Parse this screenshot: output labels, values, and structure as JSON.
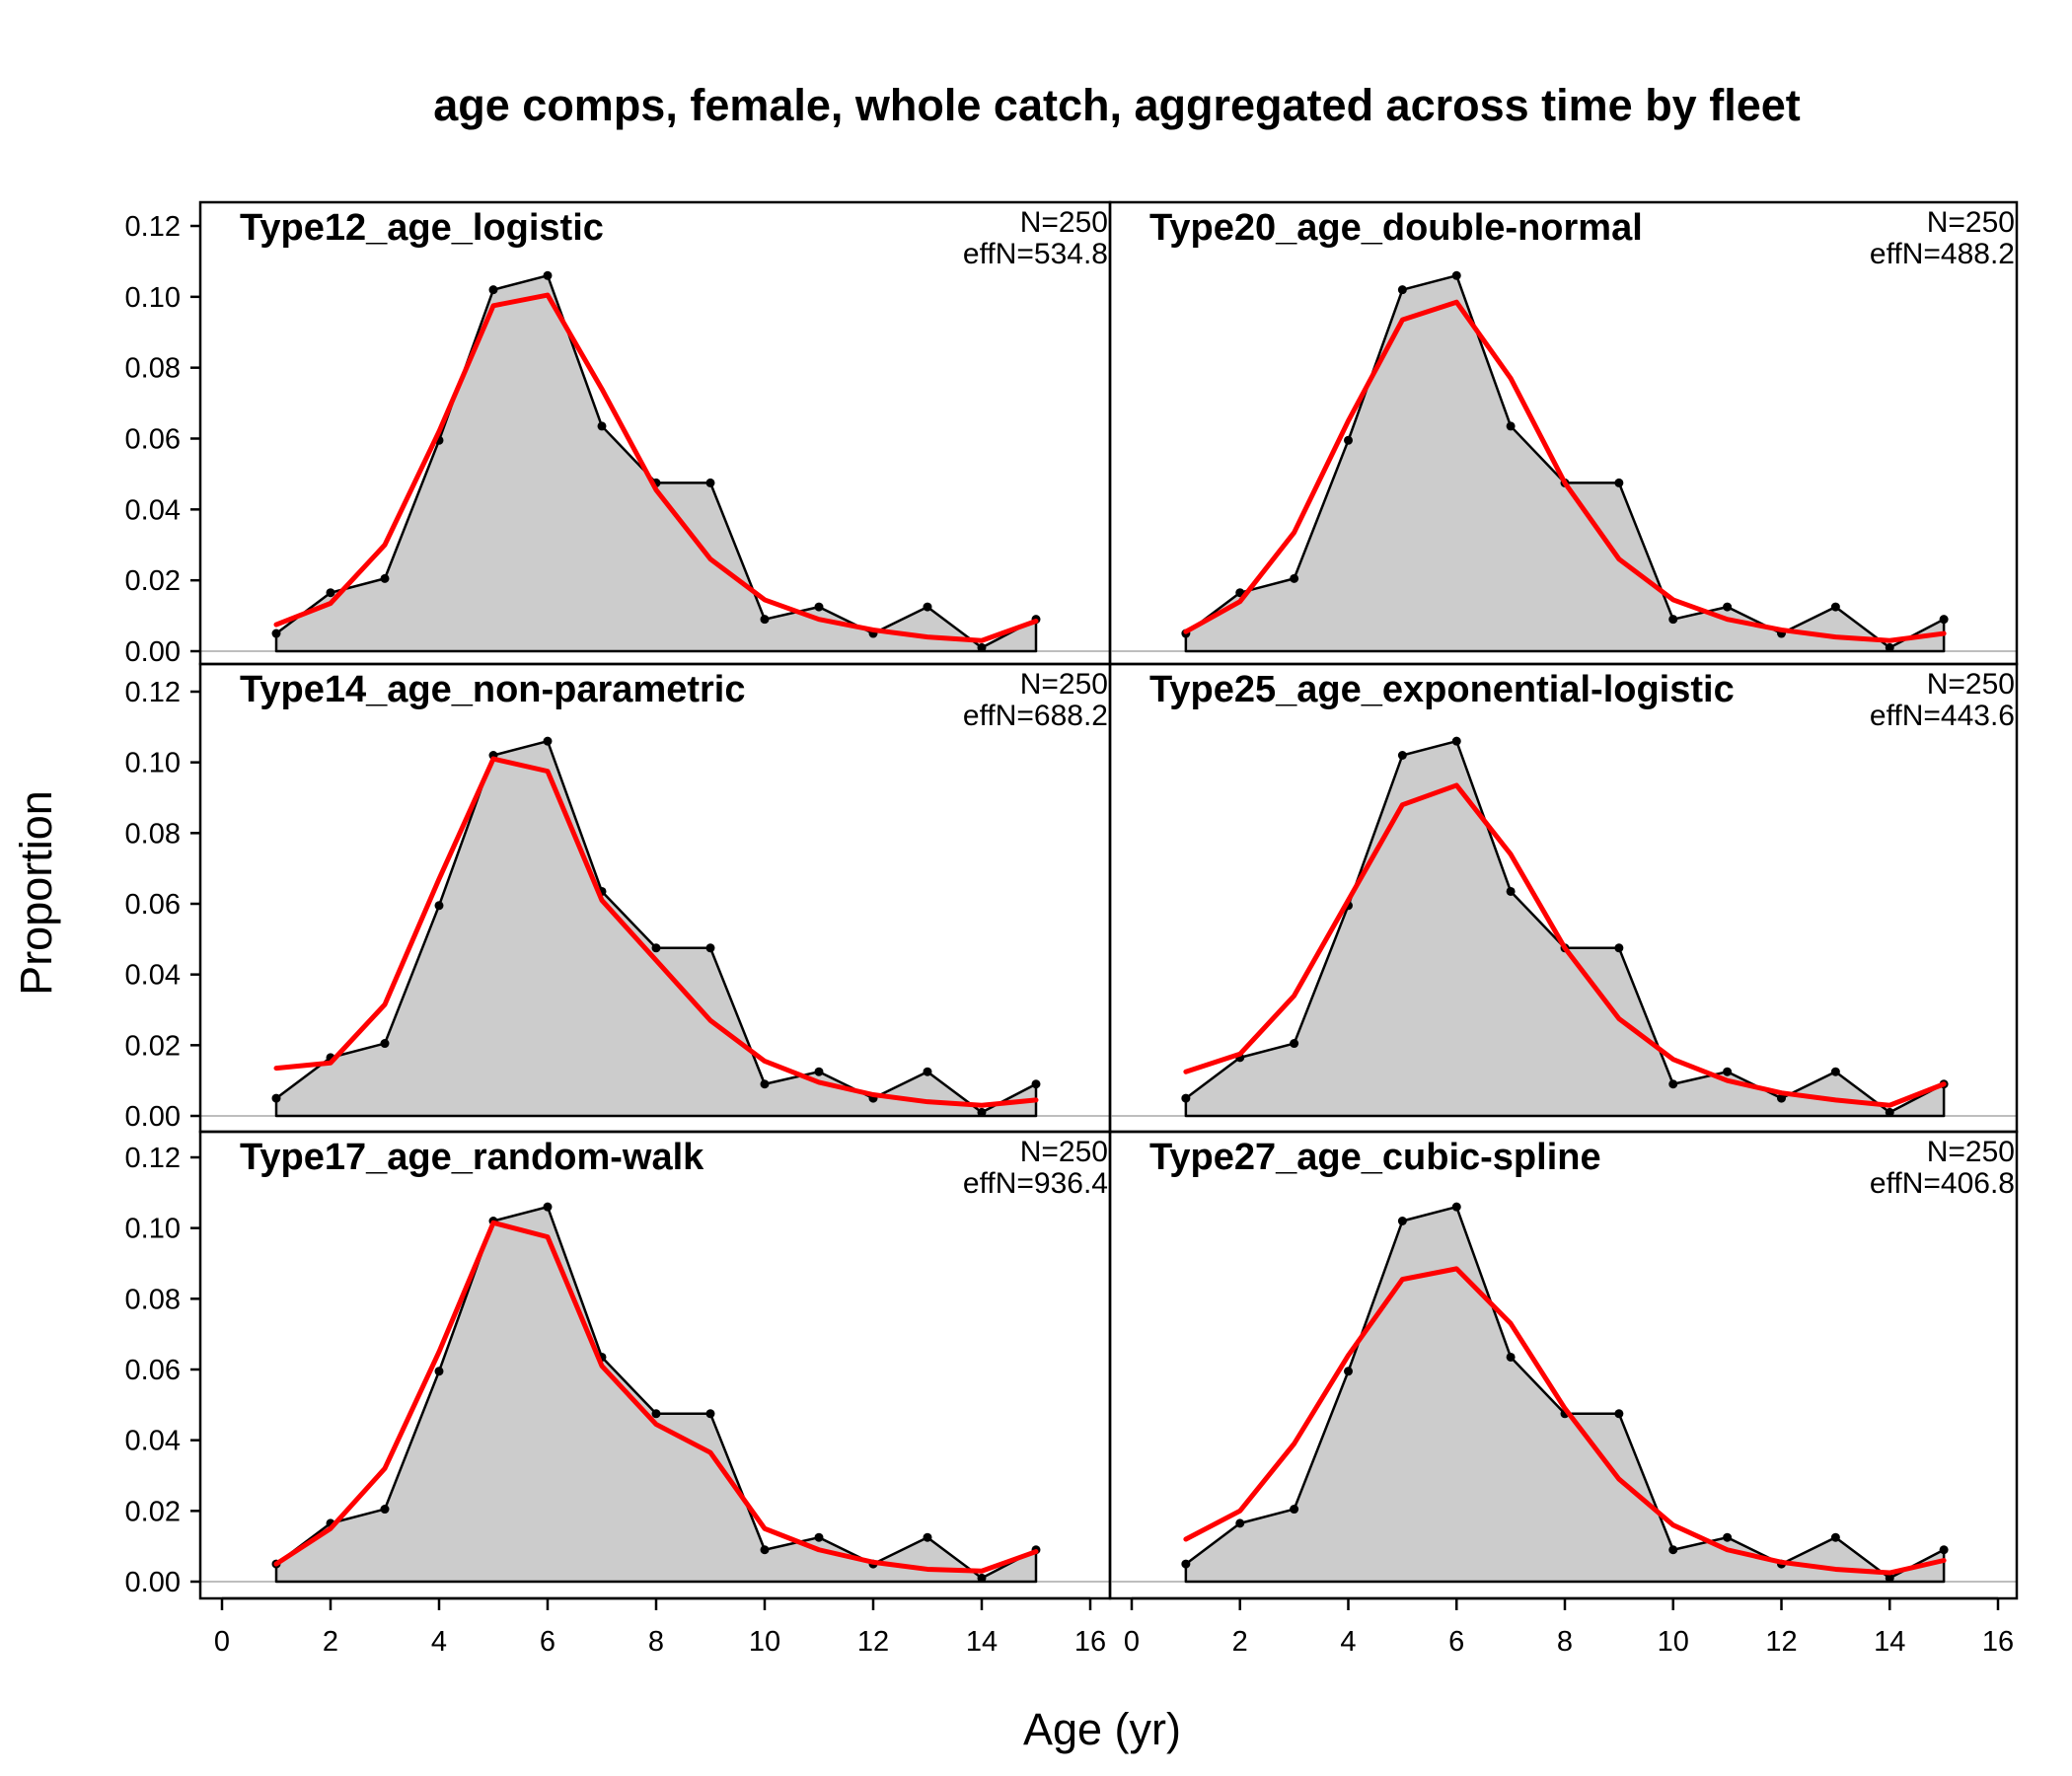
{
  "chart_data": {
    "type": "line",
    "title": "age comps, female, whole catch, aggregated across time by fleet",
    "xlabel": "Age (yr)",
    "ylabel": "Proportion",
    "xlim": [
      0,
      16
    ],
    "ylim": [
      0,
      0.12
    ],
    "x_ticks": [
      "0",
      "2",
      "4",
      "6",
      "8",
      "10",
      "12",
      "14",
      "16"
    ],
    "y_ticks": [
      "0.00",
      "0.02",
      "0.04",
      "0.06",
      "0.08",
      "0.10",
      "0.12"
    ],
    "colors": {
      "observed_fill": "#cccccc",
      "observed_line": "#000000",
      "expected_line": "#ff0000",
      "zero_line": "#bebebe"
    },
    "ages": [
      1,
      2,
      3,
      4,
      5,
      6,
      7,
      8,
      9,
      10,
      11,
      12,
      13,
      14,
      15
    ],
    "observed": [
      0.005,
      0.0165,
      0.0205,
      0.0595,
      0.102,
      0.106,
      0.0635,
      0.0475,
      0.0475,
      0.009,
      0.0125,
      0.005,
      0.0125,
      0.001,
      0.009
    ],
    "panels": [
      {
        "title": "Type12_age_logistic",
        "n_label": "N=250",
        "effn_label": "effN=534.8",
        "expected": [
          0.0075,
          0.0135,
          0.03,
          0.062,
          0.0975,
          0.1005,
          0.074,
          0.0455,
          0.026,
          0.0145,
          0.009,
          0.006,
          0.004,
          0.003,
          0.0085
        ]
      },
      {
        "title": "Type20_age_double-normal",
        "n_label": "N=250",
        "effn_label": "effN=488.2",
        "expected": [
          0.0055,
          0.014,
          0.0335,
          0.065,
          0.0935,
          0.0985,
          0.077,
          0.0475,
          0.026,
          0.0145,
          0.009,
          0.006,
          0.004,
          0.003,
          0.005
        ]
      },
      {
        "title": "Type14_age_non-parametric",
        "n_label": "N=250",
        "effn_label": "effN=688.2",
        "expected": [
          0.0135,
          0.015,
          0.0315,
          0.067,
          0.101,
          0.0975,
          0.061,
          0.044,
          0.027,
          0.0155,
          0.0095,
          0.006,
          0.004,
          0.003,
          0.0045
        ]
      },
      {
        "title": "Type25_age_exponential-logistic",
        "n_label": "N=250",
        "effn_label": "effN=443.6",
        "expected": [
          0.0125,
          0.0175,
          0.034,
          0.061,
          0.088,
          0.0935,
          0.074,
          0.0475,
          0.0275,
          0.016,
          0.01,
          0.0065,
          0.0045,
          0.003,
          0.009
        ]
      },
      {
        "title": "Type17_age_random-walk",
        "n_label": "N=250",
        "effn_label": "effN=936.4",
        "expected": [
          0.005,
          0.015,
          0.032,
          0.065,
          0.1015,
          0.0975,
          0.061,
          0.0445,
          0.0365,
          0.015,
          0.009,
          0.0055,
          0.0035,
          0.003,
          0.0085
        ]
      },
      {
        "title": "Type27_age_cubic-spline",
        "n_label": "N=250",
        "effn_label": "effN=406.8",
        "expected": [
          0.012,
          0.02,
          0.039,
          0.064,
          0.0855,
          0.0885,
          0.073,
          0.049,
          0.029,
          0.016,
          0.009,
          0.0055,
          0.0035,
          0.0025,
          0.006
        ]
      }
    ]
  }
}
